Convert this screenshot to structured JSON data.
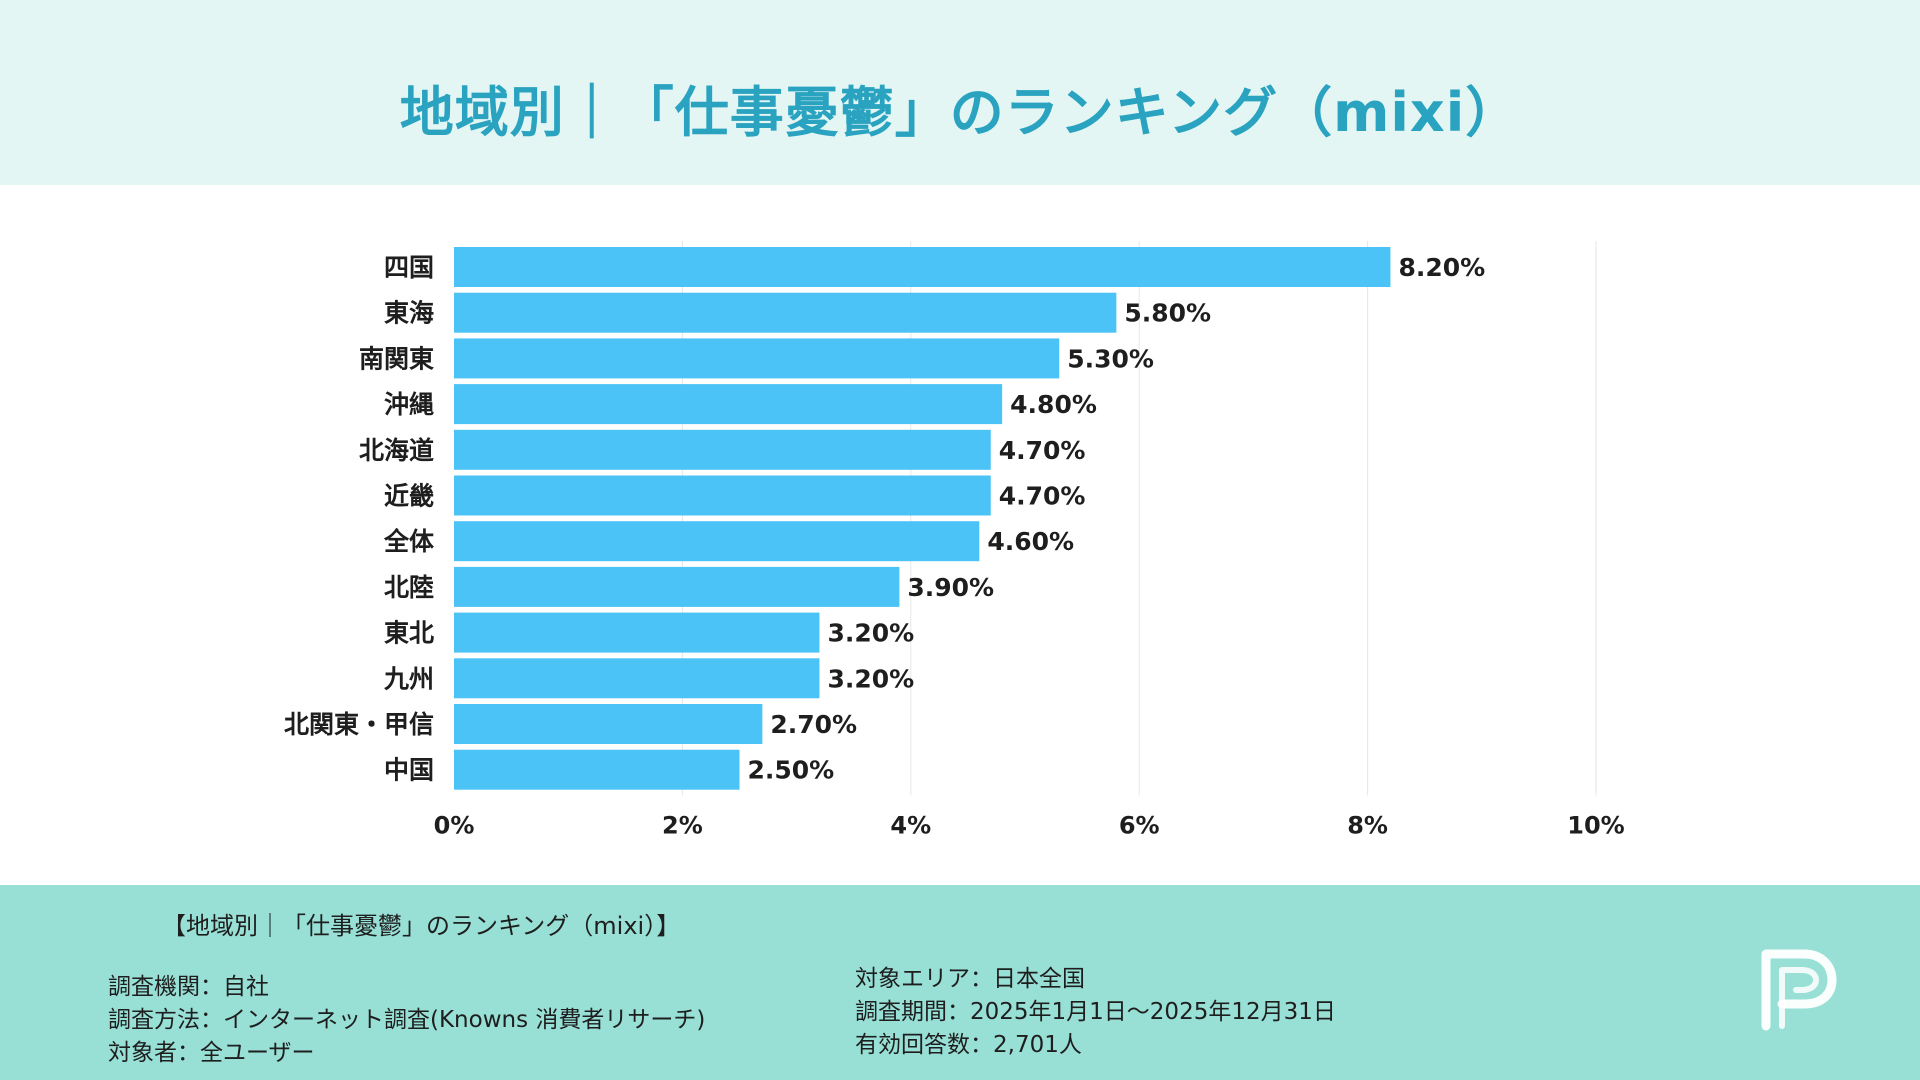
{
  "header": {
    "title": "地域別｜「仕事憂鬱」のランキング（mixi）"
  },
  "chart_data": {
    "type": "bar",
    "orientation": "horizontal",
    "categories": [
      "四国",
      "東海",
      "南関東",
      "沖縄",
      "北海道",
      "近畿",
      "全体",
      "北陸",
      "東北",
      "九州",
      "北関東・甲信",
      "中国"
    ],
    "values": [
      8.2,
      5.8,
      5.3,
      4.8,
      4.7,
      4.7,
      4.6,
      3.9,
      3.2,
      3.2,
      2.7,
      2.5
    ],
    "value_labels": [
      "8.20%",
      "5.80%",
      "5.30%",
      "4.80%",
      "4.70%",
      "4.70%",
      "4.60%",
      "3.90%",
      "3.20%",
      "3.20%",
      "2.70%",
      "2.50%"
    ],
    "xlim": [
      0,
      10
    ],
    "x_ticks": [
      0,
      2,
      4,
      6,
      8,
      10
    ],
    "x_tick_labels": [
      "0%",
      "2%",
      "4%",
      "6%",
      "8%",
      "10%"
    ],
    "grid": true,
    "legend": "none",
    "bar_color": "#4cc3f6"
  },
  "footer": {
    "title": "【地域別｜「仕事憂鬱」のランキング（mixi）】",
    "left_lines": [
      "調査機関：自社",
      "調査方法：インターネット調査(Knowns 消費者リサーチ)",
      "対象者：全ユーザー"
    ],
    "right_lines": [
      "対象エリア：日本全国",
      "調査期間：2025年1月1日〜2025年12月31日",
      "有効回答数：2,701人"
    ]
  },
  "colors": {
    "header_bg": "#e4f6f4",
    "title": "#2aa3c0",
    "footer_bg": "#98e0d6",
    "bar": "#4cc3f6",
    "grid": "#e6e6e6"
  },
  "logo": {
    "icon": "p-logo-icon"
  }
}
